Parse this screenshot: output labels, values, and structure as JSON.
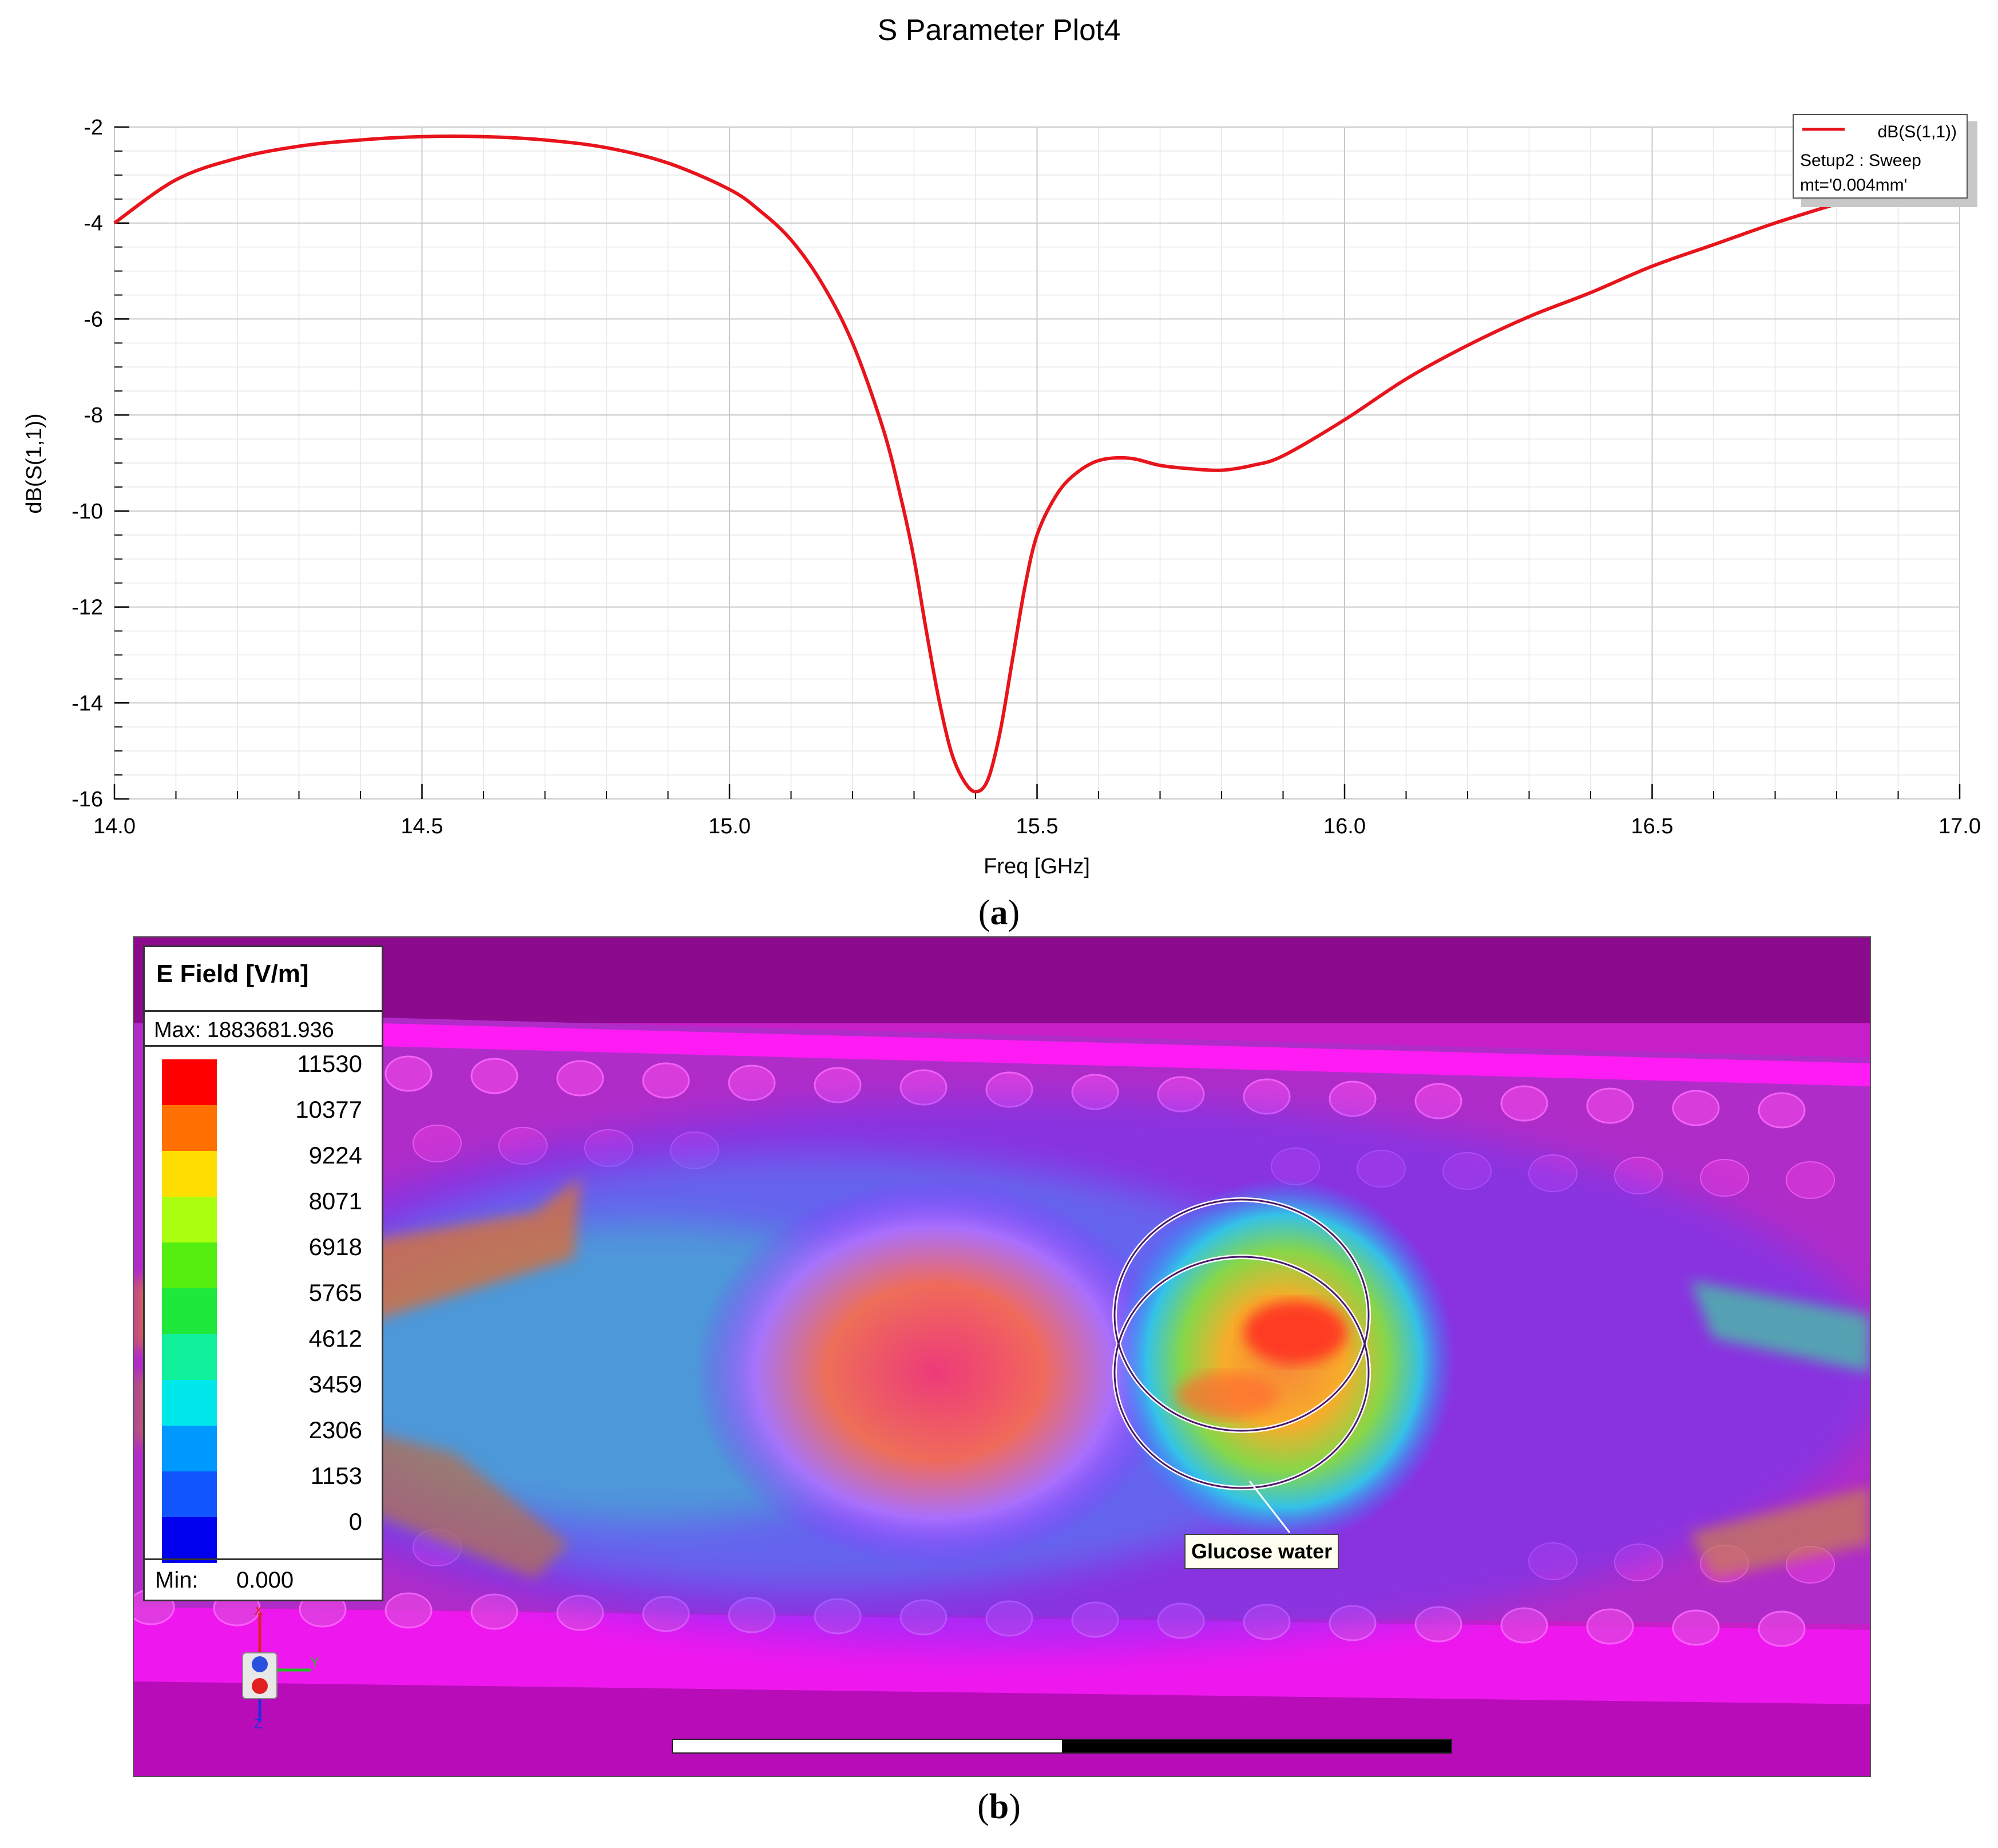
{
  "figure": {
    "panel_a_label": "a",
    "panel_b_label": "b"
  },
  "chart_data": {
    "type": "line",
    "title": "S Parameter Plot4",
    "xlabel": "Freq [GHz]",
    "ylabel": "dB(S(1,1))",
    "xlim": [
      14.0,
      17.0
    ],
    "ylim": [
      -16,
      -2
    ],
    "xticks": [
      14.0,
      14.5,
      15.0,
      15.5,
      16.0,
      16.5,
      17.0
    ],
    "xtick_labels": [
      "14.0",
      "14.5",
      "15.0",
      "15.5",
      "16.0",
      "16.5",
      "17.0"
    ],
    "yticks": [
      -2,
      -4,
      -6,
      -8,
      -10,
      -12,
      -14,
      -16
    ],
    "ytick_labels": [
      "-2",
      "-4",
      "-6",
      "-8",
      "-10",
      "-12",
      "-14",
      "-16"
    ],
    "grid": true,
    "legend": {
      "placement": "top-right",
      "entry": "dB(S(1,1))",
      "line2": "Setup2 : Sweep",
      "line3": "mt='0.004mm'"
    },
    "series": [
      {
        "name": "dB(S(1,1))",
        "color": "#e8141c",
        "x": [
          14.0,
          14.1,
          14.2,
          14.3,
          14.4,
          14.5,
          14.6,
          14.7,
          14.8,
          14.9,
          15.0,
          15.05,
          15.1,
          15.15,
          15.2,
          15.25,
          15.28,
          15.3,
          15.32,
          15.34,
          15.36,
          15.38,
          15.4,
          15.42,
          15.44,
          15.46,
          15.48,
          15.5,
          15.53,
          15.56,
          15.6,
          15.65,
          15.7,
          15.75,
          15.8,
          15.85,
          15.9,
          16.0,
          16.1,
          16.2,
          16.3,
          16.4,
          16.5,
          16.6,
          16.7,
          16.8
        ],
        "y": [
          -4.0,
          -3.1,
          -2.65,
          -2.4,
          -2.27,
          -2.2,
          -2.2,
          -2.27,
          -2.43,
          -2.75,
          -3.3,
          -3.75,
          -4.35,
          -5.25,
          -6.5,
          -8.3,
          -9.8,
          -11.0,
          -12.5,
          -13.9,
          -15.0,
          -15.6,
          -15.85,
          -15.6,
          -14.6,
          -13.1,
          -11.6,
          -10.5,
          -9.7,
          -9.25,
          -8.95,
          -8.9,
          -9.05,
          -9.12,
          -9.15,
          -9.05,
          -8.85,
          -8.1,
          -7.25,
          -6.55,
          -5.95,
          -5.45,
          -4.9,
          -4.45,
          -4.0,
          -3.6
        ]
      }
    ]
  },
  "field_plot": {
    "legend_title": "E Field [V/m]",
    "max_text": "Max: 1883681.936",
    "min_label": "Min:",
    "min_value": "0.000",
    "scale": [
      {
        "value": "11530",
        "color": "#ff0000"
      },
      {
        "value": "10377",
        "color": "#ff7000"
      },
      {
        "value": "9224",
        "color": "#ffdd00"
      },
      {
        "value": "8071",
        "color": "#aaff11"
      },
      {
        "value": "6918",
        "color": "#55ee11"
      },
      {
        "value": "5765",
        "color": "#1ee83a"
      },
      {
        "value": "4612",
        "color": "#11f09a"
      },
      {
        "value": "3459",
        "color": "#00e8ea"
      },
      {
        "value": "2306",
        "color": "#0099ff"
      },
      {
        "value": "1153",
        "color": "#1155ff"
      },
      {
        "value": "0",
        "color": "#0000ee"
      }
    ],
    "annotation": "Glucose water",
    "axes": {
      "x": "X",
      "y": "Y",
      "z": "Z"
    }
  }
}
